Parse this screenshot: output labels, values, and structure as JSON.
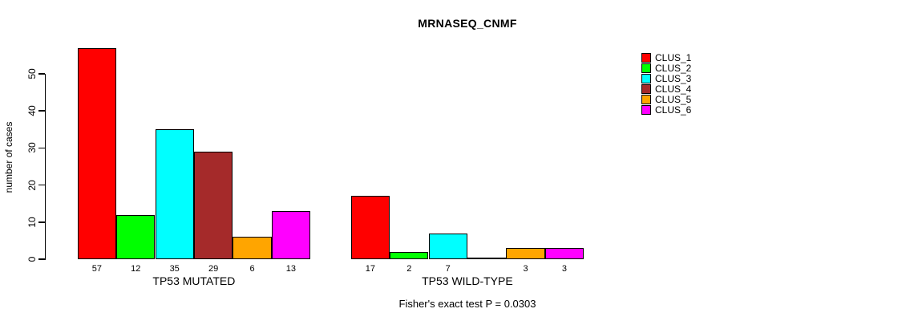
{
  "chart_data": {
    "type": "bar",
    "title": "MRNASEQ_CNMF",
    "ylabel": "number of cases",
    "ylim": [
      0,
      57
    ],
    "yticks": [
      0,
      10,
      20,
      30,
      40,
      50
    ],
    "categories": [
      "TP53 MUTATED",
      "TP53 WILD-TYPE"
    ],
    "series": [
      {
        "name": "CLUS_1",
        "color": "#FF0000",
        "values": [
          57,
          17
        ]
      },
      {
        "name": "CLUS_2",
        "color": "#00FF00",
        "values": [
          12,
          2
        ]
      },
      {
        "name": "CLUS_3",
        "color": "#00FFFF",
        "values": [
          35,
          7
        ]
      },
      {
        "name": "CLUS_4",
        "color": "#A52A2A",
        "values": [
          29,
          0
        ]
      },
      {
        "name": "CLUS_5",
        "color": "#FFA500",
        "values": [
          6,
          3
        ]
      },
      {
        "name": "CLUS_6",
        "color": "#FF00FF",
        "values": [
          13,
          3
        ]
      }
    ],
    "bar_value_labels_shown": true,
    "zero_value_label_hidden": true,
    "legend": {
      "position": "top-right",
      "entries": [
        "CLUS_1",
        "CLUS_2",
        "CLUS_3",
        "CLUS_4",
        "CLUS_5",
        "CLUS_6"
      ]
    },
    "annotation": "Fisher's exact test P = 0.0303",
    "grid": false,
    "axis_color": "#000000",
    "background_color": "#FFFFFF"
  }
}
